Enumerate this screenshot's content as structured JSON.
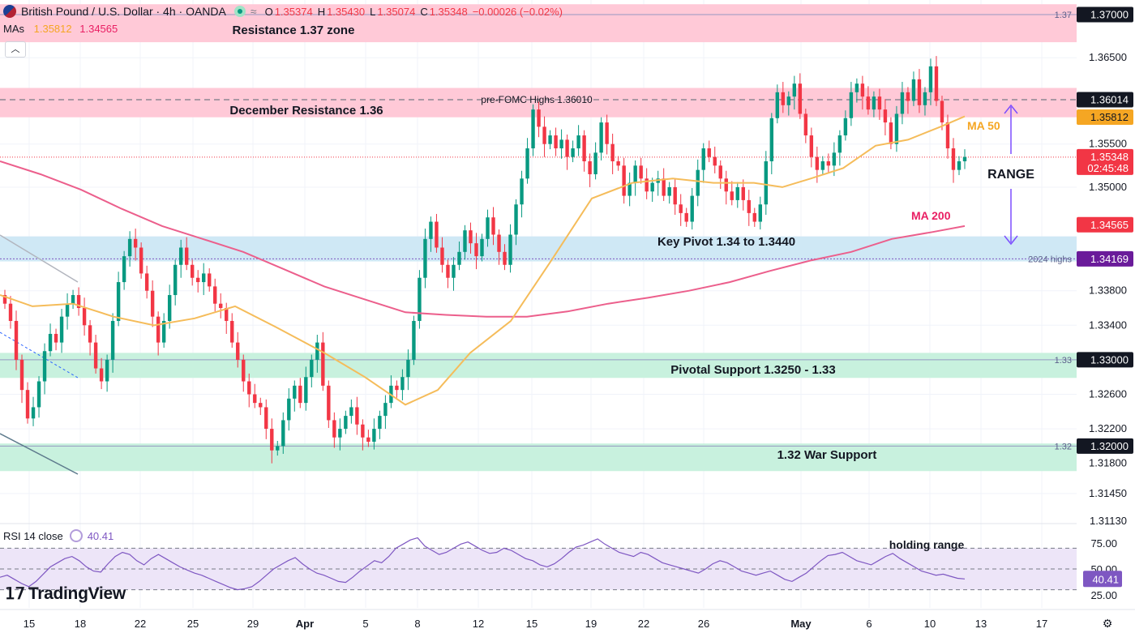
{
  "header": {
    "title": "British Pound / U.S. Dollar · 4h · OANDA",
    "ohlc": {
      "o_label": "O",
      "o": "1.35374",
      "h_label": "H",
      "h": "1.35430",
      "l_label": "L",
      "l": "1.35074",
      "c_label": "C",
      "c": "1.35348",
      "change": "−0.00026 (−0.02%)"
    },
    "mas_label": "MAs",
    "ma50_value": "1.35812",
    "ma200_value": "1.34565"
  },
  "rsi": {
    "label": "RSI 14 close",
    "value": "40.41",
    "axis": [
      "75.00",
      "50.00",
      "25.00"
    ],
    "value_badge": "40.41"
  },
  "logo": {
    "text": "TradingView"
  },
  "colors": {
    "up": "#089981",
    "down": "#f23645",
    "ma50": "#f5bc5a",
    "ma200": "#ec5f8c",
    "rsi": "#7e57c2",
    "resistance_zone": "#ffc9d7",
    "pivot_zone": "#cfe8f5",
    "support_zone": "#c8f1de",
    "arrow": "#7c4dff"
  },
  "chart_data": {
    "type": "candlestick",
    "title": "British Pound / U.S. Dollar · 4h · OANDA",
    "y_ticks": [
      "1.37000",
      "1.36500",
      "1.36014",
      "1.35812",
      "1.35500",
      "1.35348",
      "1.35000",
      "1.34565",
      "1.34169",
      "1.33800",
      "1.33400",
      "1.33000",
      "1.32600",
      "1.32200",
      "1.31800",
      "1.31450",
      "1.31130"
    ],
    "ylim": [
      1.3113,
      1.3718
    ],
    "x_ticks": [
      "15",
      "18",
      "22",
      "25",
      "29",
      "Apr",
      "5",
      "8",
      "12",
      "15",
      "19",
      "22",
      "26",
      "May",
      "6",
      "10",
      "13",
      "17"
    ],
    "price_badges": [
      {
        "label": "1.37000",
        "value": 1.37,
        "style": "dark"
      },
      {
        "label": "1.36014",
        "value": 1.36014,
        "style": "dark"
      },
      {
        "label": "1.35812",
        "value": 1.35812,
        "style": "ma50"
      },
      {
        "label": "1.35348",
        "sub": "02:45:48",
        "value": 1.35348,
        "style": "last"
      },
      {
        "label": "1.34565",
        "value": 1.34565,
        "style": "ma200"
      },
      {
        "label": "1.34169",
        "value": 1.34169,
        "style": "purple"
      },
      {
        "label": "1.33000",
        "value": 1.33,
        "style": "dark"
      },
      {
        "label": "1.32000",
        "value": 1.32,
        "style": "dark"
      }
    ],
    "zones": [
      {
        "label": "Resistance 1.37 zone",
        "from": 1.3668,
        "to": 1.3712,
        "kind": "resistance"
      },
      {
        "label": "December Resistance 1.36",
        "from": 1.3581,
        "to": 1.3615,
        "kind": "resistance"
      },
      {
        "label": "Key Pivot 1.34 to 1.3440",
        "from": 1.3414,
        "to": 1.3443,
        "kind": "pivot"
      },
      {
        "label": "Pivotal Support 1.3250 - 1.33",
        "from": 1.3279,
        "to": 1.3308,
        "kind": "support"
      },
      {
        "label": "1.32 War Support",
        "from": 1.3171,
        "to": 1.3203,
        "kind": "support"
      }
    ],
    "level_lines": [
      {
        "label": "1.37",
        "value": 1.37
      },
      {
        "label": "1.33",
        "value": 1.33
      },
      {
        "label": "1.32",
        "value": 1.32
      },
      {
        "label": "2024 highs",
        "value": 1.34169
      }
    ],
    "annotations": [
      {
        "text": "pre-FOMC Highs 1.36010",
        "value": 1.3601
      },
      {
        "text": "MA 50"
      },
      {
        "text": "MA 200"
      },
      {
        "text": "RANGE"
      },
      {
        "text": "holding range"
      }
    ],
    "candles_close": [
      1.3365,
      1.3345,
      1.33,
      1.3265,
      1.3232,
      1.3245,
      1.3275,
      1.331,
      1.333,
      1.332,
      1.335,
      1.3365,
      1.3375,
      1.336,
      1.334,
      1.332,
      1.329,
      1.3275,
      1.33,
      1.3345,
      1.339,
      1.342,
      1.344,
      1.343,
      1.34,
      1.338,
      1.335,
      1.332,
      1.3345,
      1.3375,
      1.341,
      1.343,
      1.341,
      1.3395,
      1.339,
      1.34,
      1.3385,
      1.3365,
      1.336,
      1.3345,
      1.332,
      1.33,
      1.3275,
      1.326,
      1.325,
      1.3245,
      1.322,
      1.3195,
      1.32,
      1.323,
      1.3255,
      1.327,
      1.325,
      1.328,
      1.33,
      1.332,
      1.327,
      1.323,
      1.321,
      1.322,
      1.3235,
      1.3245,
      1.3225,
      1.321,
      1.3205,
      1.322,
      1.3235,
      1.325,
      1.327,
      1.3265,
      1.328,
      1.33,
      1.3345,
      1.3395,
      1.344,
      1.346,
      1.343,
      1.341,
      1.3395,
      1.341,
      1.3425,
      1.345,
      1.3435,
      1.342,
      1.344,
      1.3465,
      1.3445,
      1.3425,
      1.341,
      1.3445,
      1.348,
      1.351,
      1.3545,
      1.359,
      1.357,
      1.355,
      1.356,
      1.3545,
      1.3555,
      1.3535,
      1.3545,
      1.356,
      1.353,
      1.3515,
      1.354,
      1.3575,
      1.355,
      1.353,
      1.3525,
      1.349,
      1.3505,
      1.3525,
      1.351,
      1.3495,
      1.3505,
      1.351,
      1.349,
      1.35,
      1.348,
      1.347,
      1.346,
      1.349,
      1.352,
      1.3545,
      1.3535,
      1.3525,
      1.351,
      1.3495,
      1.3485,
      1.35,
      1.3485,
      1.347,
      1.346,
      1.348,
      1.353,
      1.358,
      1.361,
      1.3595,
      1.3605,
      1.362,
      1.3585,
      1.356,
      1.3535,
      1.352,
      1.353,
      1.3525,
      1.354,
      1.356,
      1.358,
      1.361,
      1.362,
      1.3605,
      1.359,
      1.3605,
      1.359,
      1.3575,
      1.355,
      1.3585,
      1.361,
      1.36,
      1.3625,
      1.3595,
      1.361,
      1.364,
      1.36,
      1.3575,
      1.3545,
      1.352,
      1.353,
      1.3535
    ],
    "ma50": [
      [
        0,
        1.3375
      ],
      [
        40,
        1.3362
      ],
      [
        90,
        1.3365
      ],
      [
        140,
        1.335
      ],
      [
        190,
        1.334
      ],
      [
        240,
        1.3348
      ],
      [
        290,
        1.3362
      ],
      [
        340,
        1.3338
      ],
      [
        400,
        1.3308
      ],
      [
        450,
        1.328
      ],
      [
        500,
        1.3248
      ],
      [
        540,
        1.3265
      ],
      [
        580,
        1.3308
      ],
      [
        630,
        1.3345
      ],
      [
        680,
        1.3415
      ],
      [
        730,
        1.3487
      ],
      [
        780,
        1.3505
      ],
      [
        830,
        1.351
      ],
      [
        880,
        1.3505
      ],
      [
        930,
        1.3505
      ],
      [
        965,
        1.35
      ],
      [
        1000,
        1.351
      ],
      [
        1040,
        1.3522
      ],
      [
        1080,
        1.3548
      ],
      [
        1120,
        1.3555
      ],
      [
        1160,
        1.357
      ],
      [
        1190,
        1.3582
      ]
    ],
    "ma200": [
      [
        0,
        1.353
      ],
      [
        50,
        1.3515
      ],
      [
        100,
        1.3497
      ],
      [
        150,
        1.3475
      ],
      [
        200,
        1.3455
      ],
      [
        250,
        1.344
      ],
      [
        300,
        1.3425
      ],
      [
        350,
        1.3405
      ],
      [
        400,
        1.3385
      ],
      [
        450,
        1.337
      ],
      [
        500,
        1.3355
      ],
      [
        550,
        1.3352
      ],
      [
        600,
        1.335
      ],
      [
        650,
        1.335
      ],
      [
        700,
        1.3356
      ],
      [
        750,
        1.3365
      ],
      [
        800,
        1.3372
      ],
      [
        850,
        1.338
      ],
      [
        900,
        1.339
      ],
      [
        950,
        1.3403
      ],
      [
        1000,
        1.3415
      ],
      [
        1050,
        1.3425
      ],
      [
        1100,
        1.344
      ],
      [
        1150,
        1.3448
      ],
      [
        1190,
        1.3455
      ]
    ],
    "rsi_values": [
      42,
      44,
      40,
      36,
      33,
      38,
      45,
      52,
      56,
      60,
      62,
      58,
      52,
      48,
      47,
      55,
      62,
      66,
      64,
      58,
      54,
      60,
      64,
      60,
      56,
      52,
      49,
      46,
      44,
      41,
      38,
      35,
      32,
      30,
      31,
      33,
      38,
      44,
      50,
      54,
      58,
      61,
      55,
      50,
      46,
      44,
      41,
      38,
      37,
      42,
      48,
      53,
      58,
      56,
      62,
      70,
      74,
      78,
      80,
      72,
      68,
      64,
      66,
      70,
      74,
      76,
      72,
      68,
      65,
      66,
      70,
      68,
      64,
      60,
      58,
      54,
      52,
      55,
      60,
      66,
      71,
      73,
      76,
      79,
      74,
      70,
      66,
      64,
      62,
      66,
      64,
      60,
      56,
      54,
      52,
      50,
      48,
      46,
      50,
      55,
      58,
      56,
      52,
      48,
      46,
      44,
      46,
      48,
      44,
      40,
      38,
      42,
      46,
      52,
      58,
      63,
      64,
      66,
      62,
      58,
      56,
      54,
      58,
      62,
      65,
      60,
      56,
      52,
      48,
      46,
      44,
      45,
      43,
      41,
      40.41
    ]
  }
}
